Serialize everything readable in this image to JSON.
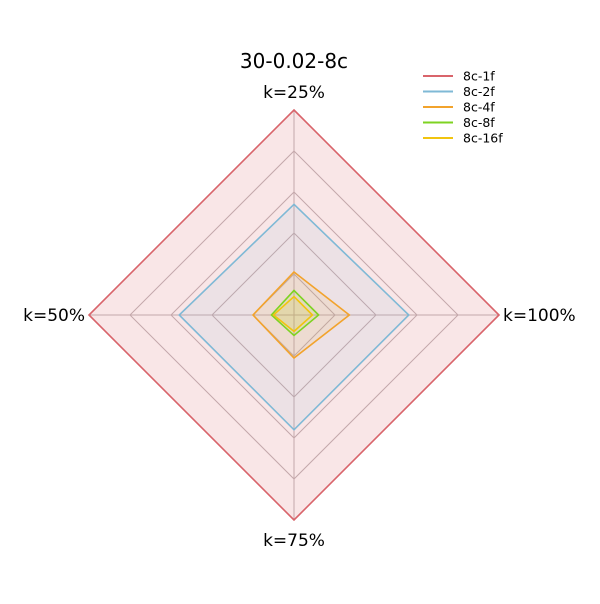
{
  "chart_data": {
    "type": "radar",
    "title": "30-0.02-8c",
    "axes": [
      "k=25%",
      "k=100%",
      "k=75%",
      "k=50%"
    ],
    "max": 1.0,
    "grid_levels": [
      0.2,
      0.4,
      0.6,
      0.8,
      1.0
    ],
    "grid": true,
    "legend_position": "top-right",
    "series": [
      {
        "name": "8c-1f",
        "color": "#d9646b",
        "fill_opacity": 0.16,
        "values": [
          1.0,
          1.0,
          1.0,
          1.0
        ]
      },
      {
        "name": "8c-2f",
        "color": "#7fb9d6",
        "fill_opacity": 0.1,
        "values": [
          0.54,
          0.56,
          0.56,
          0.56
        ]
      },
      {
        "name": "8c-4f",
        "color": "#f2a32c",
        "fill_opacity": 0.1,
        "values": [
          0.21,
          0.27,
          0.21,
          0.2
        ]
      },
      {
        "name": "8c-8f",
        "color": "#7ed321",
        "fill_opacity": 0.1,
        "values": [
          0.12,
          0.12,
          0.1,
          0.11
        ]
      },
      {
        "name": "8c-16f",
        "color": "#f1c40f",
        "fill_opacity": 0.1,
        "values": [
          0.09,
          0.09,
          0.08,
          0.1
        ]
      }
    ]
  }
}
